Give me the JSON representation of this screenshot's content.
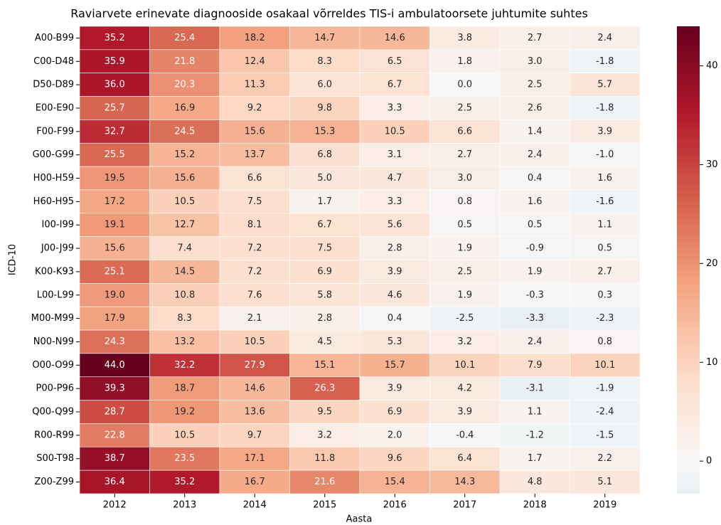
{
  "chart_data": {
    "type": "heatmap",
    "title": "Raviarvete erinevate diagnooside osakaal võrreldes TIS-i ambulatoorsete juhtumite suhtes",
    "x_label": "Aasta",
    "y_label": "ICD-10",
    "x": [
      "2012",
      "2013",
      "2014",
      "2015",
      "2016",
      "2017",
      "2018",
      "2019"
    ],
    "y": [
      "A00-B99",
      "C00-D48",
      "D50-D89",
      "E00-E90",
      "F00-F99",
      "G00-G99",
      "H00-H59",
      "H60-H95",
      "I00-I99",
      "J00-J99",
      "K00-K93",
      "L00-L99",
      "M00-M99",
      "N00-N99",
      "O00-O99",
      "P00-P96",
      "Q00-Q99",
      "R00-R99",
      "S00-T98",
      "Z00-Z99"
    ],
    "values": [
      [
        35.2,
        25.4,
        18.2,
        14.7,
        14.6,
        3.8,
        2.7,
        2.4
      ],
      [
        35.9,
        21.8,
        12.4,
        8.3,
        6.5,
        1.8,
        3.0,
        -1.8
      ],
      [
        36.0,
        20.3,
        11.3,
        6.0,
        6.7,
        0.0,
        2.5,
        5.7
      ],
      [
        25.7,
        16.9,
        9.2,
        9.8,
        3.3,
        2.5,
        2.6,
        -1.8
      ],
      [
        32.7,
        24.5,
        15.6,
        15.3,
        10.5,
        6.6,
        1.4,
        3.9
      ],
      [
        25.5,
        15.2,
        13.7,
        6.8,
        3.1,
        2.7,
        2.4,
        -1.0
      ],
      [
        19.5,
        15.6,
        6.6,
        5.0,
        4.7,
        3.0,
        0.4,
        1.6
      ],
      [
        17.2,
        10.5,
        7.5,
        1.7,
        3.3,
        0.8,
        1.6,
        -1.6
      ],
      [
        19.1,
        12.7,
        8.1,
        6.7,
        5.6,
        0.5,
        0.5,
        1.1
      ],
      [
        15.6,
        7.4,
        7.2,
        7.5,
        2.8,
        1.9,
        -0.9,
        0.5
      ],
      [
        25.1,
        14.5,
        7.2,
        6.9,
        3.9,
        2.5,
        1.9,
        2.7
      ],
      [
        19.0,
        10.8,
        7.6,
        5.8,
        4.6,
        1.9,
        -0.3,
        0.3
      ],
      [
        17.9,
        8.3,
        2.1,
        2.8,
        0.4,
        -2.5,
        -3.3,
        -2.3
      ],
      [
        24.3,
        13.2,
        10.5,
        4.5,
        5.3,
        3.2,
        2.4,
        0.8
      ],
      [
        44.0,
        32.2,
        27.9,
        15.1,
        15.7,
        10.1,
        7.9,
        10.1
      ],
      [
        39.3,
        18.7,
        14.6,
        26.3,
        3.9,
        4.2,
        -3.1,
        -1.9
      ],
      [
        28.7,
        19.2,
        13.6,
        9.5,
        6.9,
        3.9,
        1.1,
        -2.4
      ],
      [
        22.8,
        10.5,
        9.7,
        3.2,
        2.0,
        -0.4,
        -1.2,
        -1.5
      ],
      [
        38.7,
        23.5,
        17.1,
        11.8,
        9.6,
        6.4,
        1.7,
        2.2
      ],
      [
        36.4,
        35.2,
        16.7,
        21.6,
        15.4,
        14.3,
        4.8,
        5.1
      ]
    ],
    "value_labels": [
      [
        "35.2",
        "25.4",
        "18.2",
        "14.7",
        "14.6",
        "3.8",
        "2.7",
        "2.4"
      ],
      [
        "35.9",
        "21.8",
        "12.4",
        "8.3",
        "6.5",
        "1.8",
        "3.0",
        "-1.8"
      ],
      [
        "36.0",
        "20.3",
        "11.3",
        "6.0",
        "6.7",
        "0.0",
        "2.5",
        "5.7"
      ],
      [
        "25.7",
        "16.9",
        "9.2",
        "9.8",
        "3.3",
        "2.5",
        "2.6",
        "-1.8"
      ],
      [
        "32.7",
        "24.5",
        "15.6",
        "15.3",
        "10.5",
        "6.6",
        "1.4",
        "3.9"
      ],
      [
        "25.5",
        "15.2",
        "13.7",
        "6.8",
        "3.1",
        "2.7",
        "2.4",
        "-1.0"
      ],
      [
        "19.5",
        "15.6",
        "6.6",
        "5.0",
        "4.7",
        "3.0",
        "0.4",
        "1.6"
      ],
      [
        "17.2",
        "10.5",
        "7.5",
        "1.7",
        "3.3",
        "0.8",
        "1.6",
        "-1.6"
      ],
      [
        "19.1",
        "12.7",
        "8.1",
        "6.7",
        "5.6",
        "0.5",
        "0.5",
        "1.1"
      ],
      [
        "15.6",
        "7.4",
        "7.2",
        "7.5",
        "2.8",
        "1.9",
        "-0.9",
        "0.5"
      ],
      [
        "25.1",
        "14.5",
        "7.2",
        "6.9",
        "3.9",
        "2.5",
        "1.9",
        "2.7"
      ],
      [
        "19.0",
        "10.8",
        "7.6",
        "5.8",
        "4.6",
        "1.9",
        "-0.3",
        "0.3"
      ],
      [
        "17.9",
        "8.3",
        "2.1",
        "2.8",
        "0.4",
        "-2.5",
        "-3.3",
        "-2.3"
      ],
      [
        "24.3",
        "13.2",
        "10.5",
        "4.5",
        "5.3",
        "3.2",
        "2.4",
        "0.8"
      ],
      [
        "44.0",
        "32.2",
        "27.9",
        "15.1",
        "15.7",
        "10.1",
        "7.9",
        "10.1"
      ],
      [
        "39.3",
        "18.7",
        "14.6",
        "26.3",
        "3.9",
        "4.2",
        "-3.1",
        "-1.9"
      ],
      [
        "28.7",
        "19.2",
        "13.6",
        "9.5",
        "6.9",
        "3.9",
        "1.1",
        "-2.4"
      ],
      [
        "22.8",
        "10.5",
        "9.7",
        "3.2",
        "2.0",
        "-0.4",
        "-1.2",
        "-1.5"
      ],
      [
        "38.7",
        "23.5",
        "17.1",
        "11.8",
        "9.6",
        "6.4",
        "1.7",
        "2.2"
      ],
      [
        "36.4",
        "35.2",
        "16.7",
        "21.6",
        "15.4",
        "14.3",
        "4.8",
        "5.1"
      ]
    ],
    "colormap": [
      "#053061",
      "#2166ac",
      "#4393c3",
      "#92c5de",
      "#d1e5f0",
      "#f7f7f7",
      "#fddbc7",
      "#f4a582",
      "#d6604d",
      "#b2182b",
      "#67001f"
    ],
    "center": 0,
    "clim": [
      -3.3,
      44.0
    ],
    "cticks": [
      0,
      10,
      20,
      30,
      40
    ]
  }
}
